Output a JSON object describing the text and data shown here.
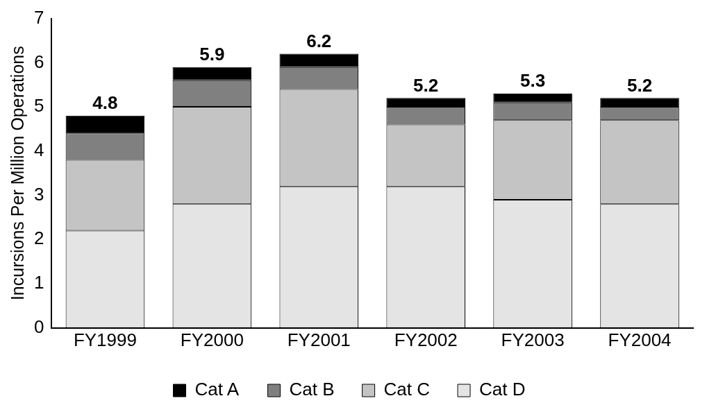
{
  "chart_data": {
    "type": "bar",
    "ylabel": "Incursions Per Million Operations",
    "categories": [
      "FY1999",
      "FY2000",
      "FY2001",
      "FY2002",
      "FY2003",
      "FY2004"
    ],
    "stacked": true,
    "ylim": [
      0,
      7
    ],
    "yticks": [
      0,
      1,
      2,
      3,
      4,
      5,
      6,
      7
    ],
    "grid": false,
    "legend": "bottom",
    "series": [
      {
        "name": "Cat D",
        "color": "#e4e4e4",
        "values": [
          2.2,
          2.8,
          3.2,
          3.2,
          2.9,
          2.8
        ]
      },
      {
        "name": "Cat C",
        "color": "#c4c4c4",
        "values": [
          1.6,
          2.2,
          2.2,
          1.4,
          1.8,
          1.9
        ]
      },
      {
        "name": "Cat B",
        "color": "#808080",
        "values": [
          0.6,
          0.6,
          0.5,
          0.4,
          0.4,
          0.3
        ]
      },
      {
        "name": "Cat A",
        "color": "#000000",
        "values": [
          0.4,
          0.3,
          0.3,
          0.2,
          0.2,
          0.2
        ]
      }
    ],
    "totals": [
      "4.8",
      "5.9",
      "6.2",
      "5.2",
      "5.3",
      "5.2"
    ]
  }
}
